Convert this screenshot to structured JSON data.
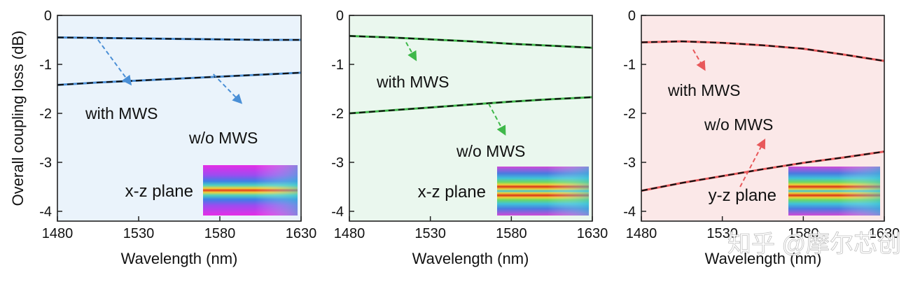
{
  "ylabel": "Overall coupling loss (dB)",
  "watermark": "知乎 @摩尔芯创",
  "chart_data": [
    {
      "type": "line",
      "xlabel": "Wavelength (nm)",
      "xlim": [
        1480,
        1630
      ],
      "ylim": [
        -4.2,
        0
      ],
      "xticks": [
        1480,
        1530,
        1580,
        1630
      ],
      "yticks": [
        0,
        -1,
        -2,
        -3,
        -4
      ],
      "colors": {
        "accent": "#4a8fd6",
        "background": "#eaf3fb"
      },
      "inset": {
        "label": "x-z plane"
      },
      "annotations": [
        {
          "text": "with MWS",
          "from": [
            1505,
            -0.5
          ],
          "to": [
            1525,
            -1.4
          ]
        },
        {
          "text": "w/o MWS",
          "from": [
            1576,
            -1.2
          ],
          "to": [
            1593,
            -1.78
          ]
        }
      ],
      "series": [
        {
          "x": [
            1480,
            1505,
            1530,
            1555,
            1580,
            1605,
            1630
          ],
          "y": [
            -0.45,
            -0.46,
            -0.47,
            -0.48,
            -0.49,
            -0.5,
            -0.5
          ]
        },
        {
          "x": [
            1480,
            1505,
            1530,
            1555,
            1580,
            1605,
            1630
          ],
          "y": [
            -1.42,
            -1.37,
            -1.33,
            -1.29,
            -1.25,
            -1.21,
            -1.17
          ]
        }
      ]
    },
    {
      "type": "line",
      "xlabel": "Wavelength (nm)",
      "xlim": [
        1480,
        1630
      ],
      "ylim": [
        -4.2,
        0
      ],
      "xticks": [
        1480,
        1530,
        1580,
        1630
      ],
      "yticks": [
        0,
        -1,
        -2,
        -3,
        -4
      ],
      "colors": {
        "accent": "#3fb84a",
        "background": "#eaf7ee"
      },
      "inset": {
        "label": "x-z plane"
      },
      "annotations": [
        {
          "text": "with MWS",
          "from": [
            1515,
            -0.55
          ],
          "to": [
            1521,
            -0.9
          ]
        },
        {
          "text": "w/o MWS",
          "from": [
            1566,
            -1.8
          ],
          "to": [
            1576,
            -2.42
          ]
        }
      ],
      "series": [
        {
          "x": [
            1480,
            1505,
            1530,
            1555,
            1580,
            1605,
            1630
          ],
          "y": [
            -0.42,
            -0.45,
            -0.49,
            -0.53,
            -0.58,
            -0.62,
            -0.66
          ]
        },
        {
          "x": [
            1480,
            1505,
            1530,
            1555,
            1580,
            1605,
            1630
          ],
          "y": [
            -2.0,
            -1.94,
            -1.88,
            -1.82,
            -1.76,
            -1.71,
            -1.67
          ]
        }
      ]
    },
    {
      "type": "line",
      "xlabel": "Wavelength (nm)",
      "xlim": [
        1480,
        1630
      ],
      "ylim": [
        -4.2,
        0
      ],
      "xticks": [
        1480,
        1530,
        1580,
        1630
      ],
      "yticks": [
        0,
        -1,
        -2,
        -3,
        -4
      ],
      "colors": {
        "accent": "#e8585a",
        "background": "#fbe8e8"
      },
      "inset": {
        "label": "y-z plane"
      },
      "annotations": [
        {
          "text": "with MWS",
          "from": [
            1512,
            -0.7
          ],
          "to": [
            1519,
            -1.1
          ]
        },
        {
          "text": "w/o MWS",
          "from": [
            1541,
            -3.5
          ],
          "to": [
            1556,
            -2.55
          ]
        }
      ],
      "series": [
        {
          "x": [
            1480,
            1505,
            1530,
            1555,
            1580,
            1605,
            1630
          ],
          "y": [
            -0.55,
            -0.53,
            -0.56,
            -0.61,
            -0.68,
            -0.8,
            -0.93
          ]
        },
        {
          "x": [
            1480,
            1505,
            1530,
            1555,
            1580,
            1605,
            1630
          ],
          "y": [
            -3.58,
            -3.42,
            -3.28,
            -3.14,
            -3.01,
            -2.9,
            -2.78
          ]
        }
      ]
    }
  ]
}
